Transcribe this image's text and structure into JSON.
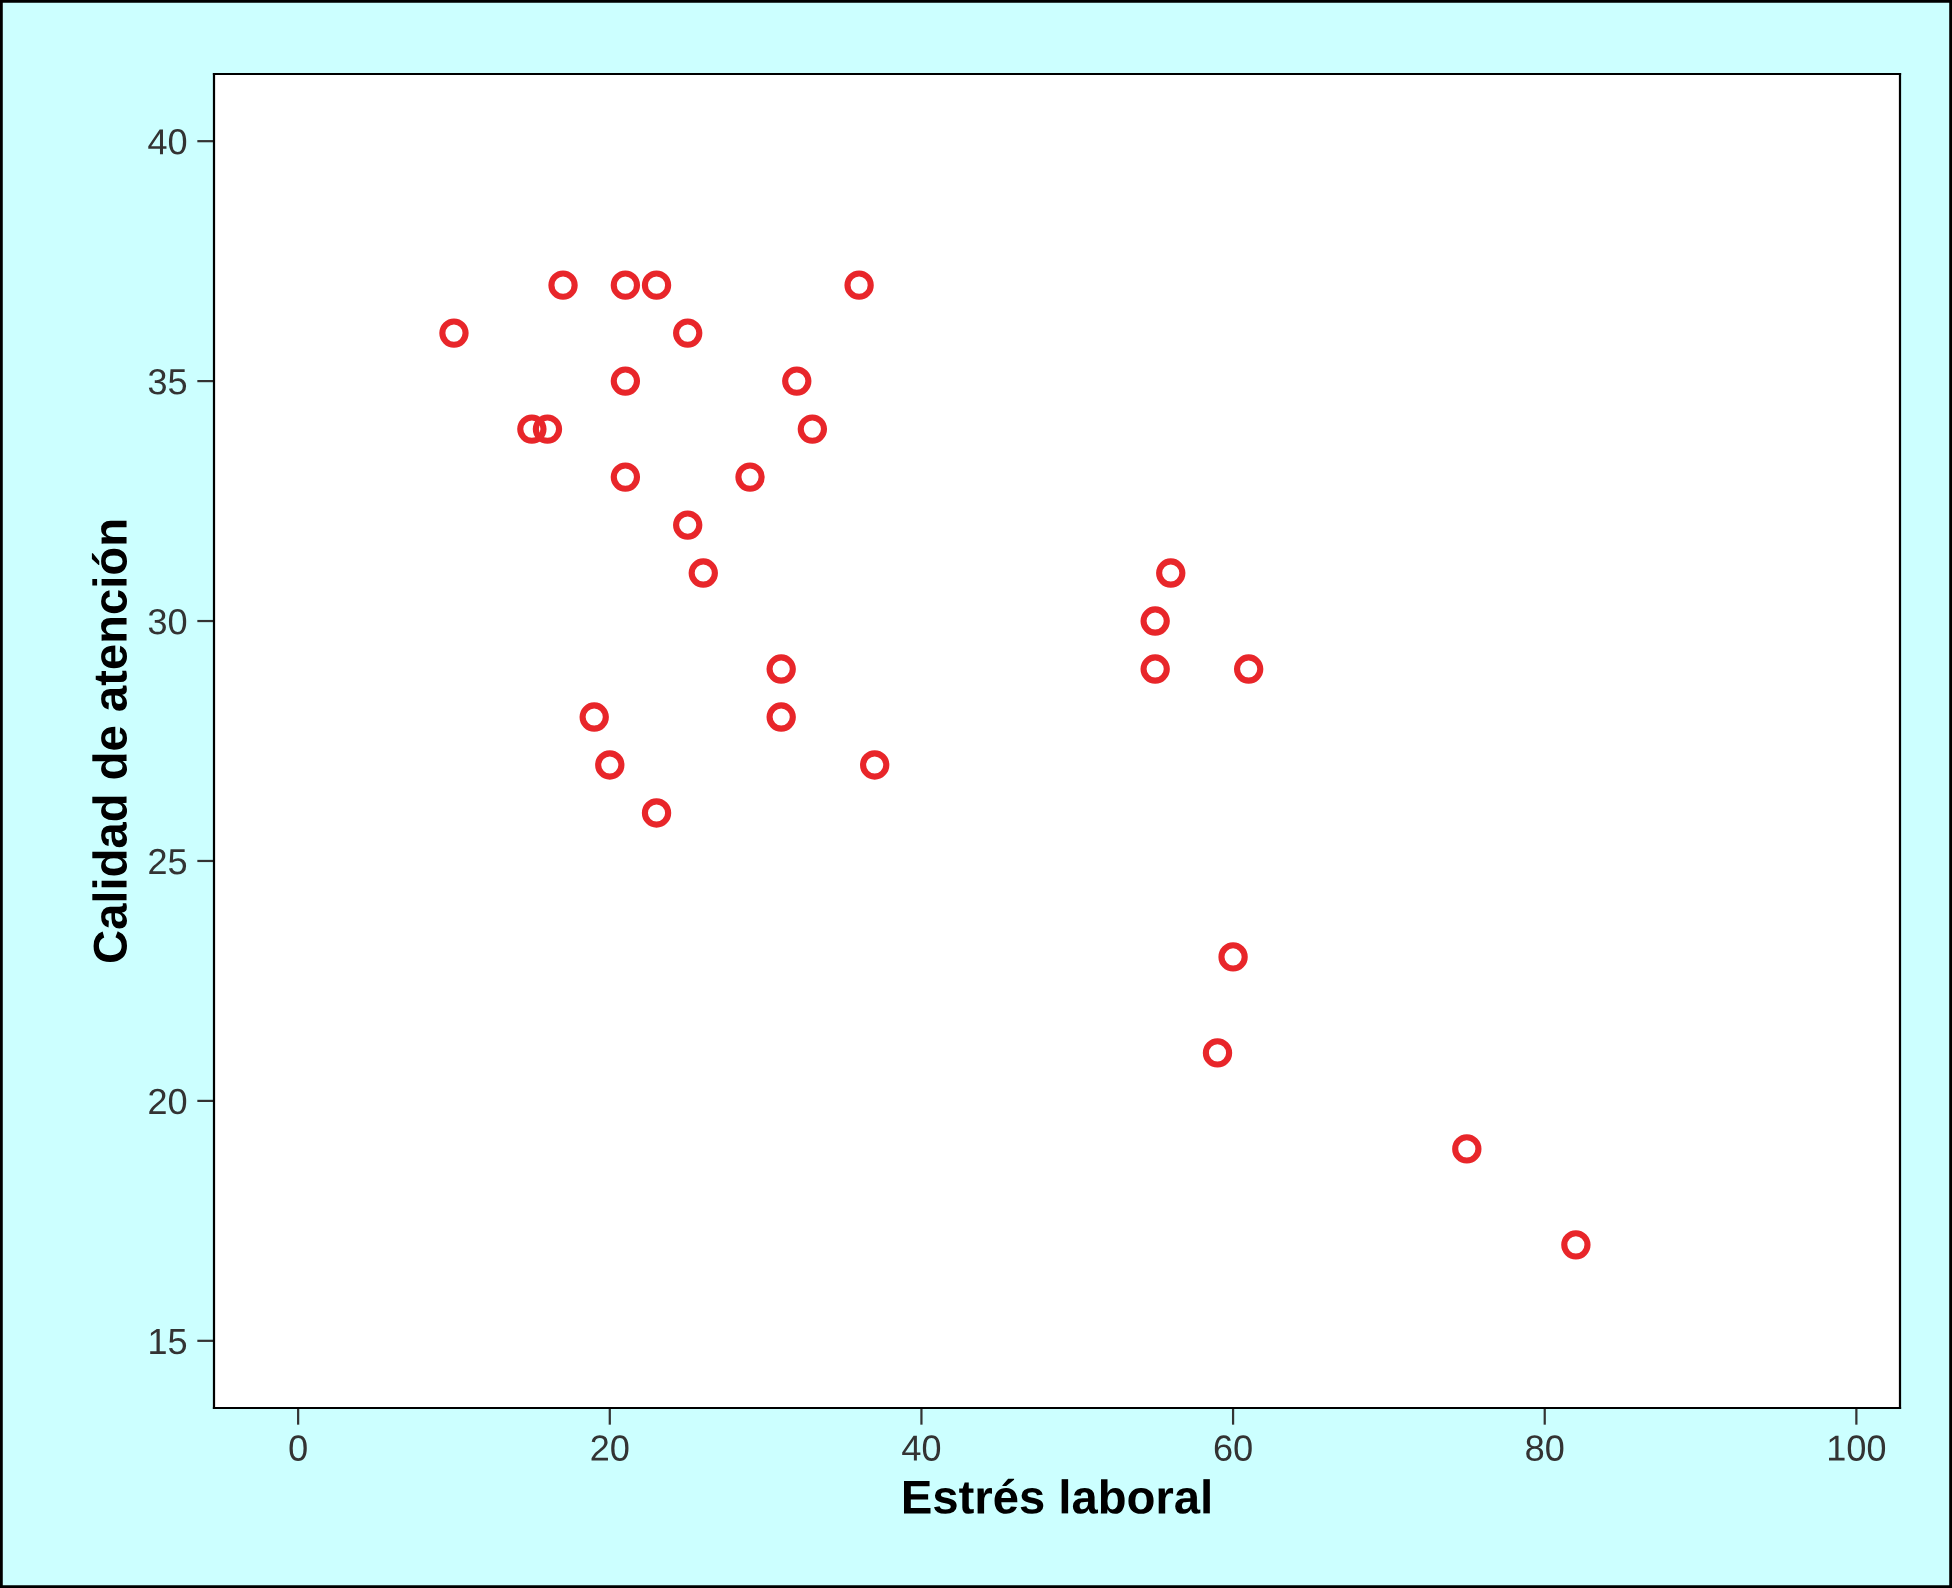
{
  "chart_data": {
    "type": "scatter",
    "xlabel": "Estrés laboral",
    "ylabel": "Calidad de atención",
    "series": [
      {
        "color": "#e8262a",
        "x": [
          10,
          17,
          21,
          23,
          36,
          25,
          21,
          32,
          15,
          16,
          33,
          21,
          29,
          25,
          26,
          56,
          55,
          55,
          61,
          31,
          19,
          31,
          20,
          37,
          23,
          60,
          59,
          75,
          82
        ],
        "values": [
          36,
          37,
          37,
          37,
          37,
          36,
          35,
          35,
          34,
          34,
          34,
          33,
          33,
          32,
          31,
          31,
          30,
          29,
          29,
          29,
          28,
          28,
          27,
          27,
          26,
          23,
          21,
          19,
          17
        ]
      }
    ],
    "xlim": [
      -5.4,
      102.8
    ],
    "ylim": [
      13.6,
      41.4
    ],
    "xticks": [
      0,
      20,
      40,
      60,
      80,
      100
    ],
    "yticks": [
      15,
      20,
      25,
      30,
      35,
      40
    ],
    "marker": "circle",
    "grid": false,
    "legend": false
  }
}
